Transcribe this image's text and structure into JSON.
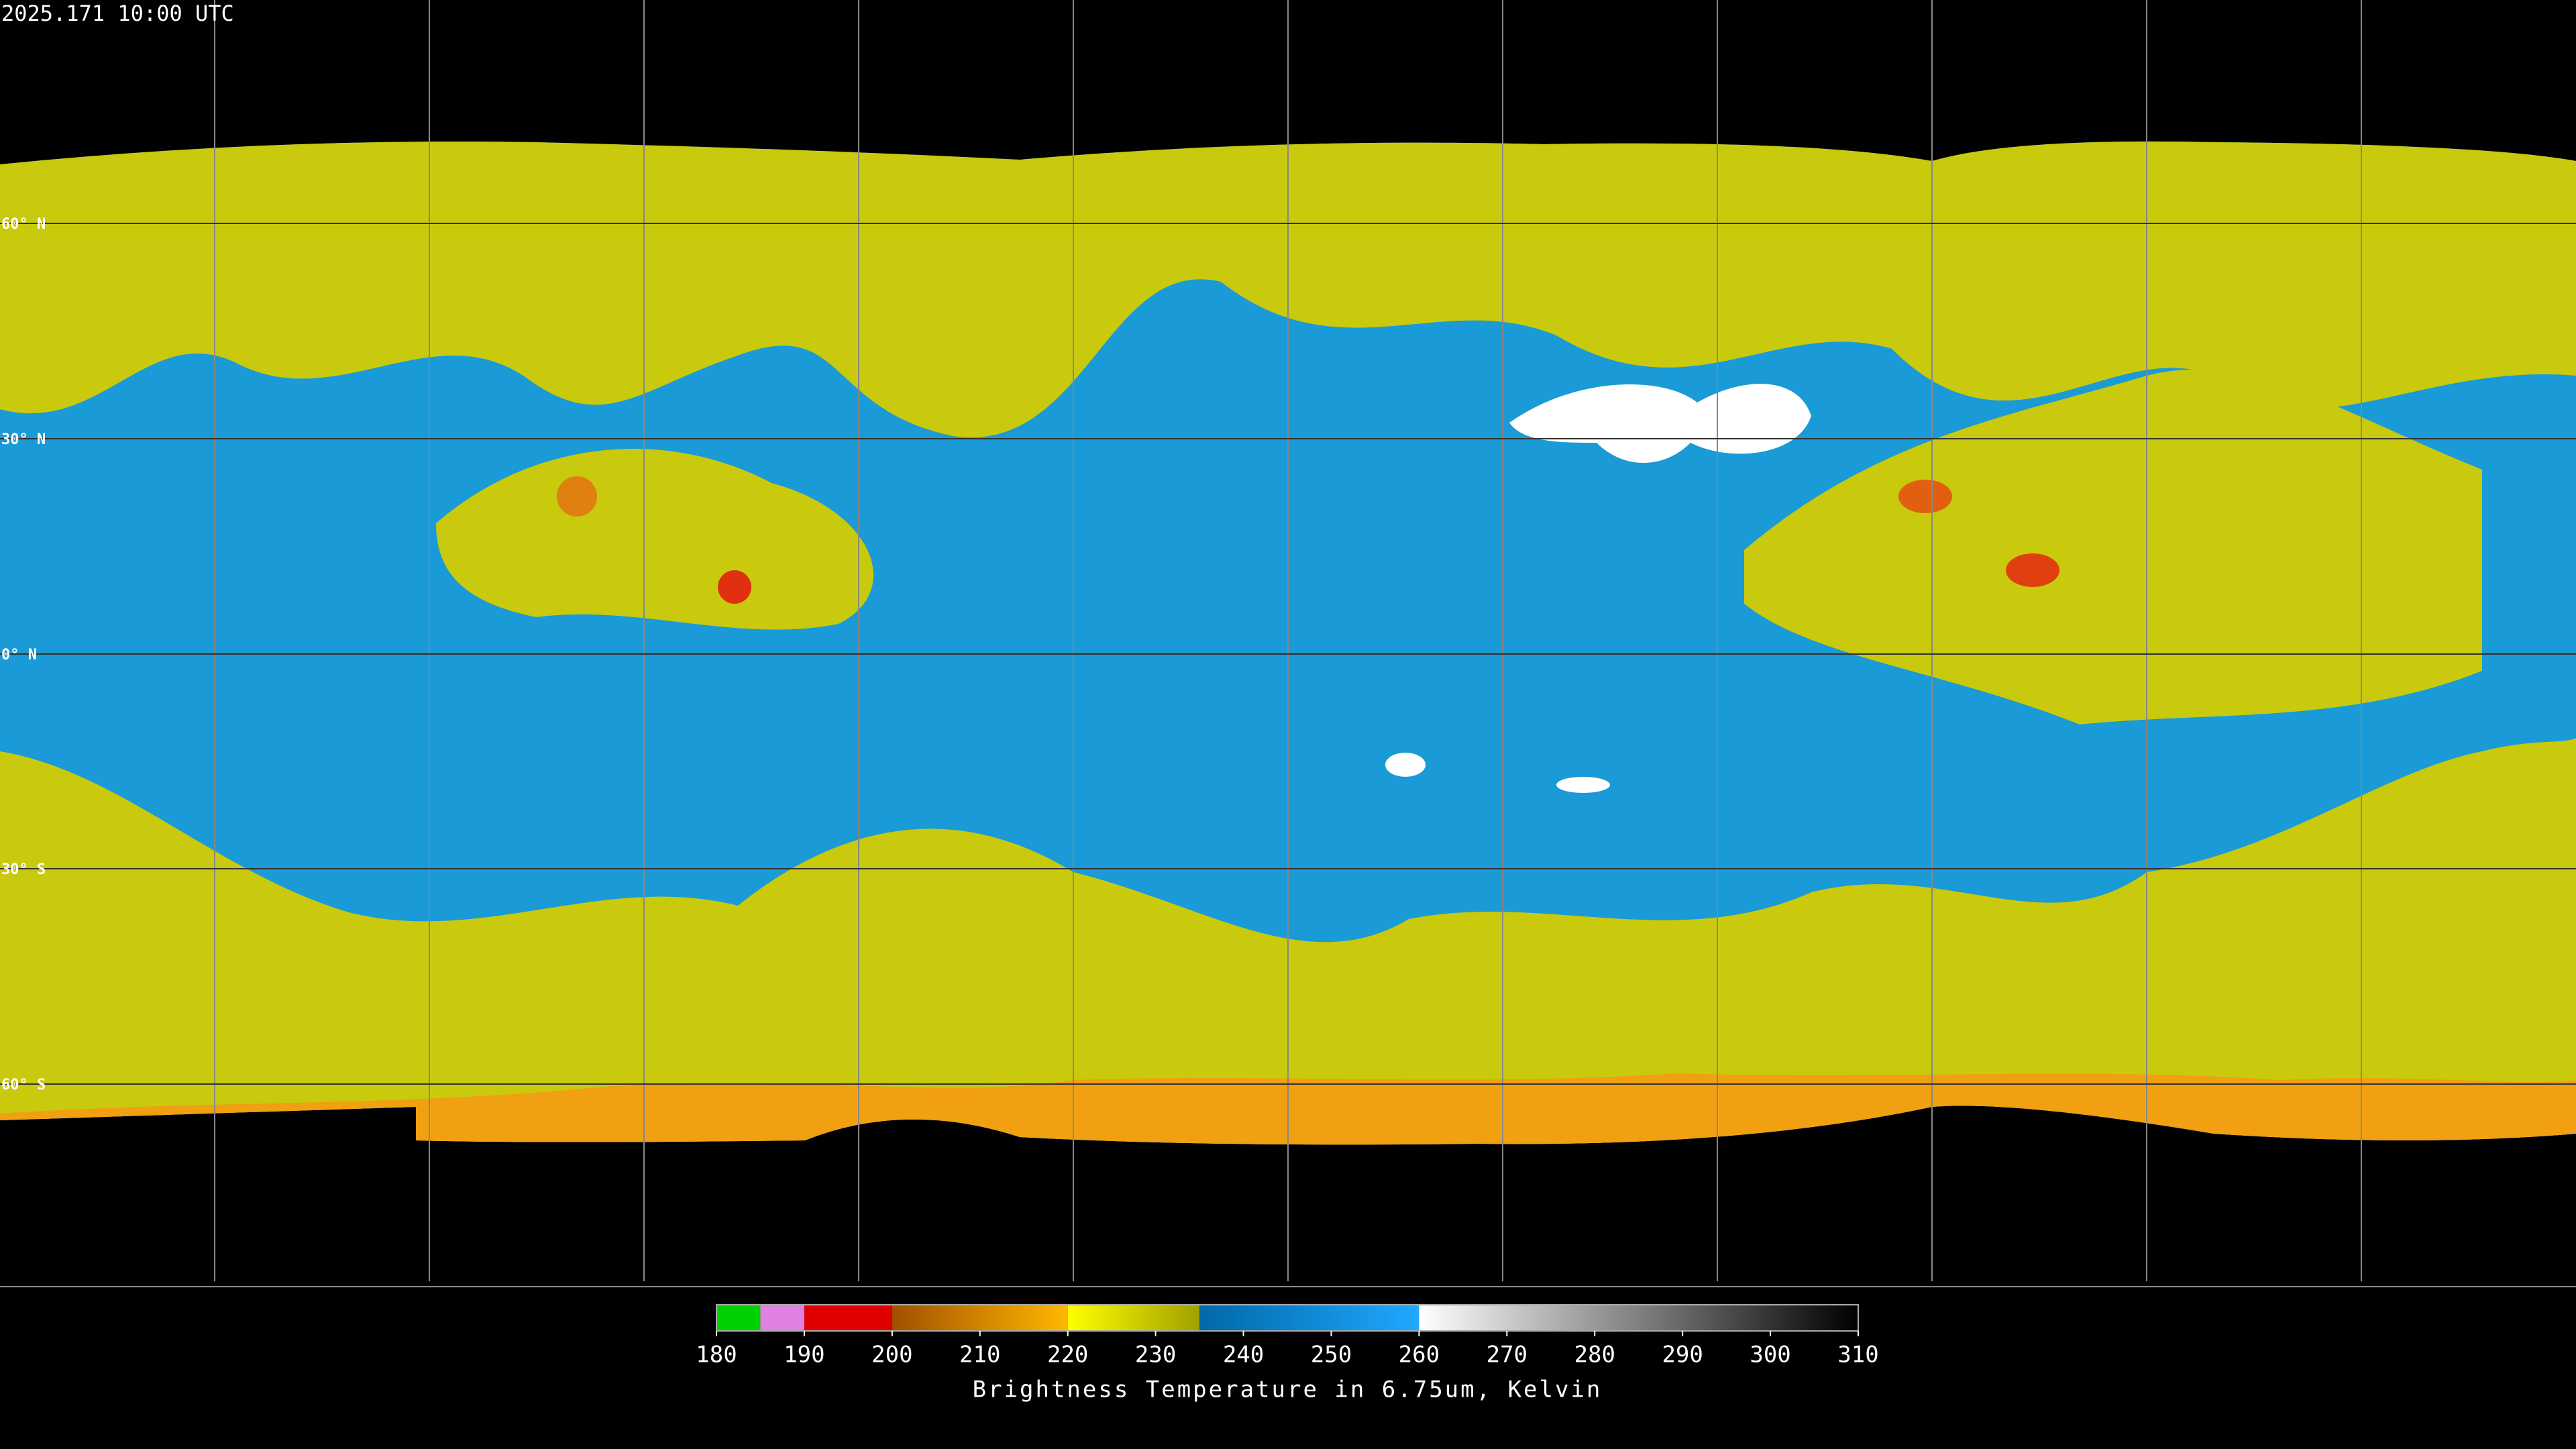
{
  "header": {
    "timestamp": "2025.171 10:00 UTC"
  },
  "map": {
    "lat_labels": [
      "60° N",
      "30° N",
      "0° N",
      "30° S",
      "60° S"
    ]
  },
  "colorbar": {
    "range": [
      180,
      310
    ],
    "ticks": [
      180,
      190,
      200,
      210,
      220,
      230,
      240,
      250,
      260,
      270,
      280,
      290,
      300,
      310
    ],
    "label": "Brightness Temperature in 6.75um, Kelvin",
    "segments": [
      {
        "from": 180,
        "to": 185,
        "color_start": "#00d000",
        "color_end": "#00d000"
      },
      {
        "from": 185,
        "to": 190,
        "color_start": "#e080e0",
        "color_end": "#e080e0"
      },
      {
        "from": 190,
        "to": 200,
        "color_start": "#e00000",
        "color_end": "#e00000"
      },
      {
        "from": 200,
        "to": 220,
        "color_start": "#a05000",
        "color_end": "#ffb800"
      },
      {
        "from": 220,
        "to": 235,
        "color_start": "#ffff00",
        "color_end": "#a0a000"
      },
      {
        "from": 235,
        "to": 260,
        "color_start": "#0068a8",
        "color_end": "#20a8ff"
      },
      {
        "from": 260,
        "to": 310,
        "color_start": "#ffffff",
        "color_end": "#000000"
      }
    ]
  }
}
